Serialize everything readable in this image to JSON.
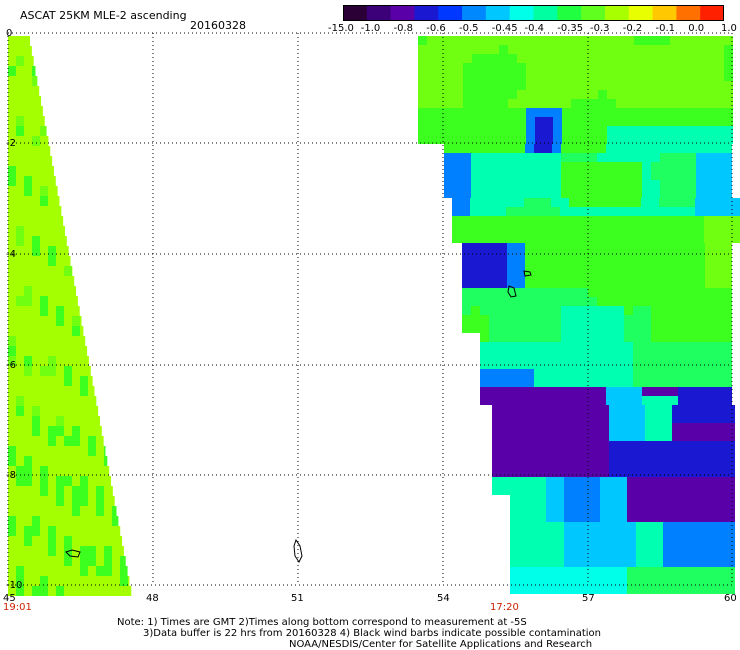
{
  "header": {
    "title": "ASCAT 25KM MLE-2 ascending",
    "date": "20160328"
  },
  "colorbar": {
    "colors": [
      "#2a0036",
      "#3c0078",
      "#5a00a8",
      "#1a18d0",
      "#0038ff",
      "#0088ff",
      "#00c8ff",
      "#00ffe8",
      "#00ffa0",
      "#20ff40",
      "#60ff20",
      "#a8ff00",
      "#e8ff00",
      "#ffc800",
      "#ff7000",
      "#ff2000"
    ],
    "labels": [
      "-15.0",
      "-1.0",
      "-0.8",
      "-0.6",
      "-0.5",
      "-0.45",
      "-0.4",
      "-0.35",
      "-0.3",
      "-0.2",
      "-0.1",
      "0.0",
      "1.0"
    ]
  },
  "map": {
    "lon_ticks": [
      "45",
      "48",
      "51",
      "54",
      "57",
      "60"
    ],
    "lat_ticks": [
      "0",
      "-2",
      "-4",
      "-6",
      "-8",
      "-10"
    ],
    "time_left": "19:01",
    "time_right": "17:20"
  },
  "notes": {
    "line1": "Note: 1) Times are GMT 2)Times along bottom correspond to measurement at -5S",
    "line2": "3)Data buffer is 22 hrs from 20160328 4) Black wind barbs indicate possible contamination",
    "line3": "NOAA/NESDIS/Center for Satellite Applications and Research"
  }
}
